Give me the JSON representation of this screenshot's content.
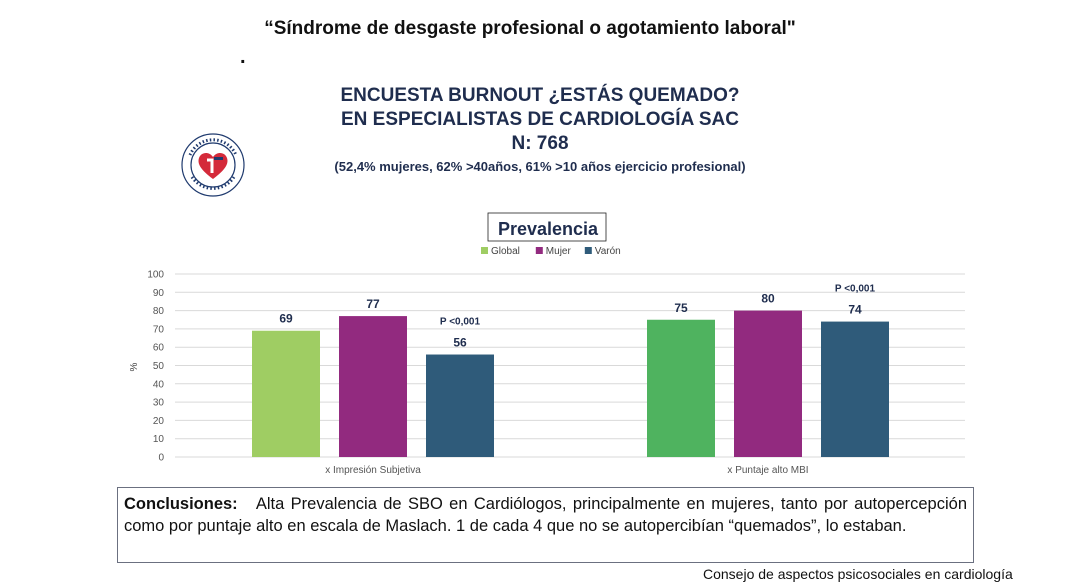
{
  "doc_title": "“Síndrome de desgaste profesional o agotamiento laboral\"",
  "dot": ".",
  "survey": {
    "title_line1": "ENCUESTA BURNOUT ¿ESTÁS QUEMADO?",
    "title_line2": "EN ESPECIALISTAS DE CARDIOLOGÍA SAC",
    "n": "N:  768",
    "subtitle": "(52,4% mujeres, 62% >40años, 61% >10 años ejercicio profesional)"
  },
  "logo": {
    "icon": "heart-emblem-icon",
    "ring_text": "SOCIEDAD ARGENTINA DE CARDIOLOGIA"
  },
  "chart_data": {
    "type": "bar",
    "title": "Prevalencia",
    "ylabel": "%",
    "ylim": [
      0,
      100
    ],
    "yticks": [
      "0",
      "10",
      "20",
      "30",
      "40",
      "50",
      "60",
      "70",
      "80",
      "90",
      "100"
    ],
    "grid": true,
    "legend_position": "top",
    "categories": [
      "x Impresión Subjetiva",
      "x Puntaje alto MBI"
    ],
    "series": [
      {
        "name": "Global",
        "color": "#9fcd63",
        "values": [
          69,
          75
        ]
      },
      {
        "name": "Mujer",
        "color": "#922a7f",
        "values": [
          77,
          80
        ]
      },
      {
        "name": "Varón",
        "color": "#2f5b7a",
        "values": [
          56,
          74
        ]
      }
    ],
    "series_colors_by_group": [
      [
        "#9fcd63",
        "#922a7f",
        "#2f5b7a"
      ],
      [
        "#4fb35f",
        "#922a7f",
        "#2f5b7a"
      ]
    ],
    "annotations": [
      "P <0,001",
      "P <0,001"
    ]
  },
  "conclusion": {
    "label": "Conclusiones:",
    "text": "Alta Prevalencia de SBO en Cardiólogos, principalmente en mujeres, tanto por autopercepción como por puntaje alto en escala de Maslach. 1 de cada 4 que no se autopercibían “quemados”, lo estaban."
  },
  "footer": "Consejo de aspectos psicosociales en cardiología"
}
